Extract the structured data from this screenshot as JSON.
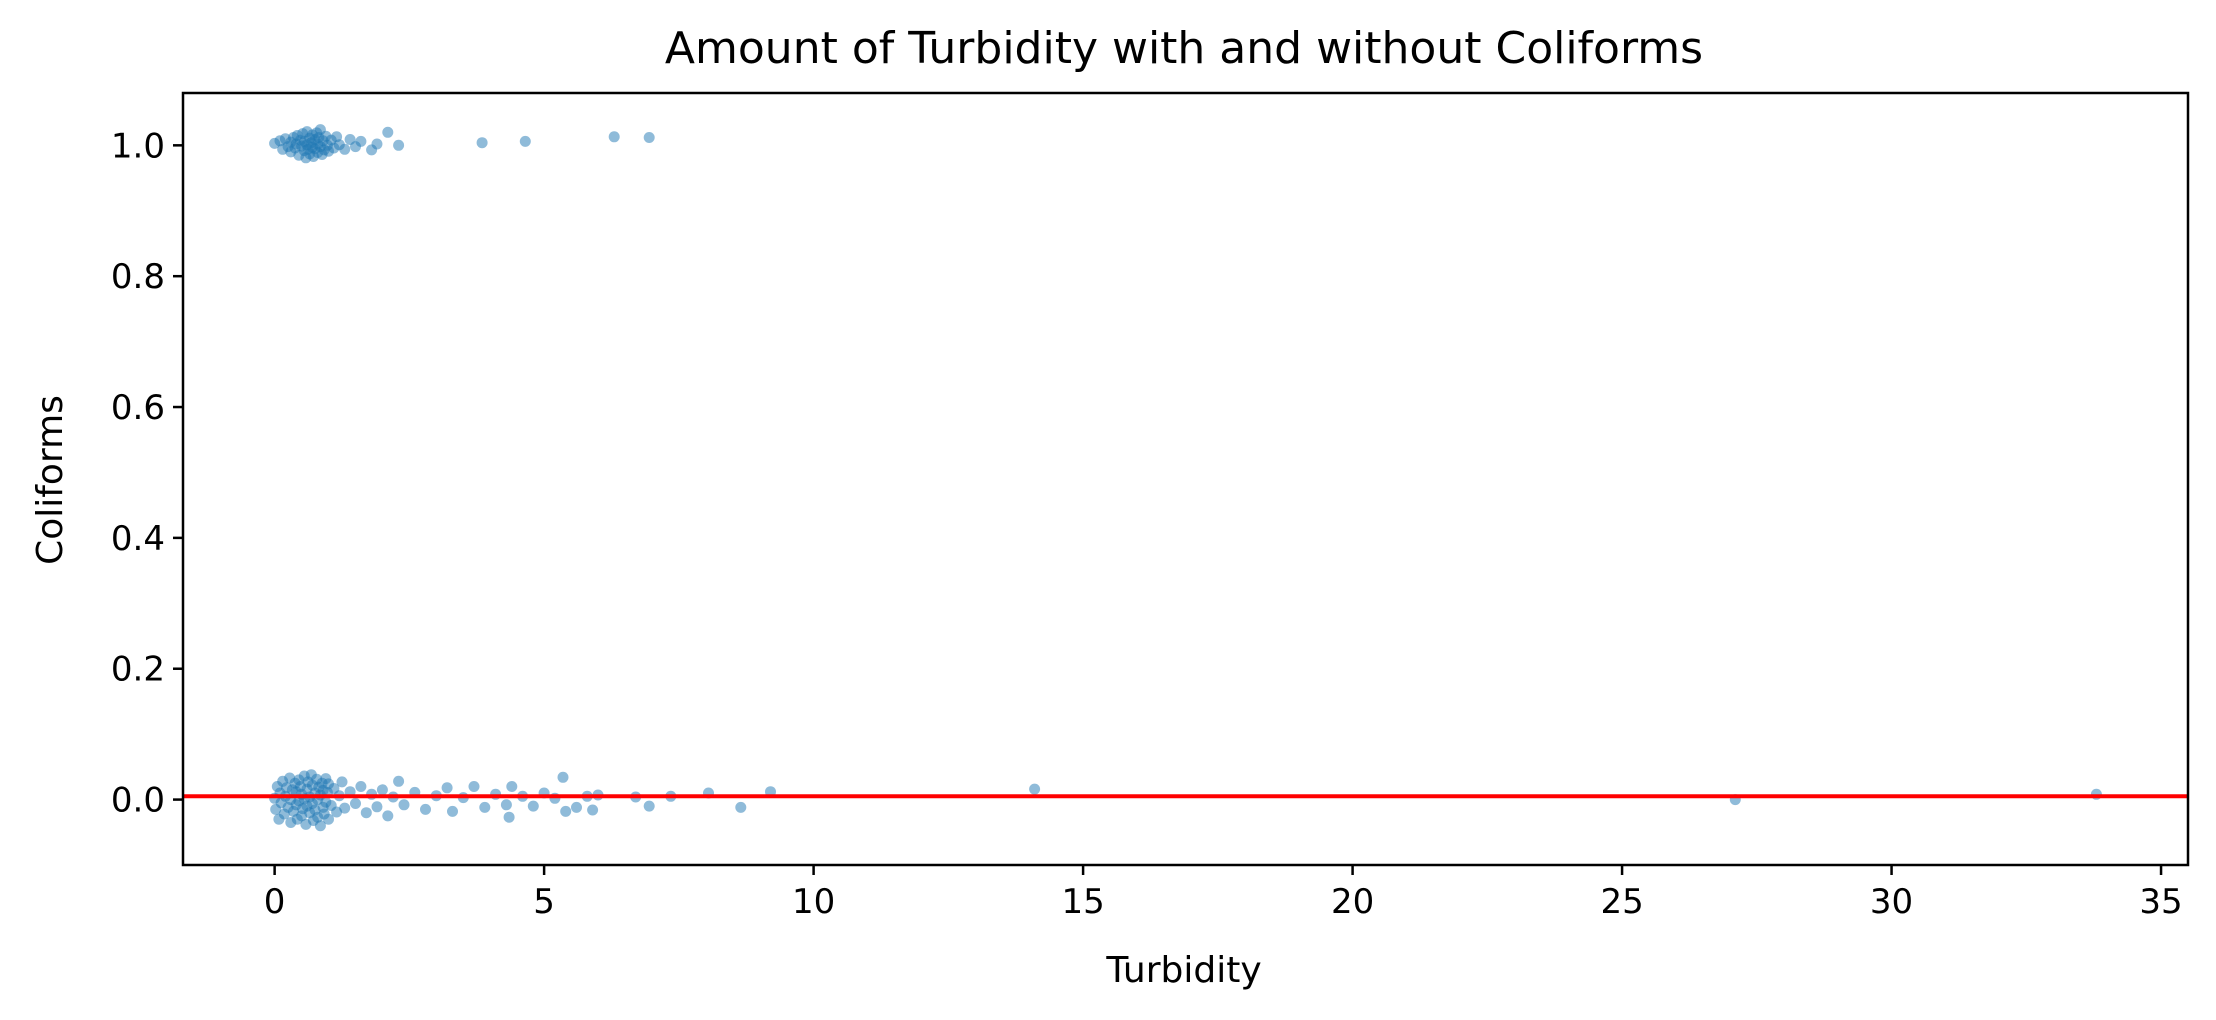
{
  "chart_data": {
    "type": "scatter",
    "title": "Amount of Turbidity with and without Coliforms",
    "xlabel": "Turbidity",
    "ylabel": "Coliforms",
    "xlim": [
      -1.7,
      35.5
    ],
    "ylim": [
      -0.1,
      1.08
    ],
    "xticks": [
      0,
      5,
      10,
      15,
      20,
      25,
      30,
      35
    ],
    "yticks": [
      0.0,
      0.2,
      0.4,
      0.6,
      0.8,
      1.0
    ],
    "xtick_labels": [
      "0",
      "5",
      "10",
      "15",
      "20",
      "25",
      "30",
      "35"
    ],
    "ytick_labels": [
      "0.0",
      "0.2",
      "0.4",
      "0.6",
      "0.8",
      "1.0"
    ],
    "grid": false,
    "point_color": "#1f77b4",
    "point_alpha": 0.5,
    "reference_line": {
      "y": 0.005,
      "color": "#ff0000"
    },
    "series": [
      {
        "points": [
          [
            0.0,
            1.003
          ],
          [
            0.1,
            1.007
          ],
          [
            0.15,
            0.994
          ],
          [
            0.2,
            1.01
          ],
          [
            0.25,
            0.998
          ],
          [
            0.3,
            1.005
          ],
          [
            0.3,
            0.99
          ],
          [
            0.35,
            1.012
          ],
          [
            0.38,
            0.996
          ],
          [
            0.4,
            1.002
          ],
          [
            0.42,
            1.015
          ],
          [
            0.45,
            0.985
          ],
          [
            0.48,
            1.008
          ],
          [
            0.5,
            0.999
          ],
          [
            0.52,
            1.018
          ],
          [
            0.55,
            0.992
          ],
          [
            0.55,
            1.006
          ],
          [
            0.58,
            0.981
          ],
          [
            0.6,
            1.001
          ],
          [
            0.6,
            1.021
          ],
          [
            0.62,
            0.994
          ],
          [
            0.65,
            1.011
          ],
          [
            0.65,
            0.987
          ],
          [
            0.68,
            1.004
          ],
          [
            0.7,
            0.997
          ],
          [
            0.7,
            1.016
          ],
          [
            0.72,
            0.983
          ],
          [
            0.75,
            1.009
          ],
          [
            0.75,
            0.995
          ],
          [
            0.78,
            1.019
          ],
          [
            0.8,
            1.002
          ],
          [
            0.8,
            0.989
          ],
          [
            0.82,
            1.012
          ],
          [
            0.85,
            0.998
          ],
          [
            0.85,
            1.024
          ],
          [
            0.88,
            0.986
          ],
          [
            0.9,
            1.007
          ],
          [
            0.92,
            0.993
          ],
          [
            0.95,
            1.014
          ],
          [
            0.98,
            1.0
          ],
          [
            1.0,
            0.991
          ],
          [
            1.05,
            1.008
          ],
          [
            1.1,
            0.996
          ],
          [
            1.15,
            1.013
          ],
          [
            1.2,
            1.001
          ],
          [
            1.3,
            0.994
          ],
          [
            1.4,
            1.009
          ],
          [
            1.5,
            0.998
          ],
          [
            1.6,
            1.006
          ],
          [
            1.8,
            0.993
          ],
          [
            1.9,
            1.002
          ],
          [
            2.1,
            1.02
          ],
          [
            2.3,
            1.0
          ],
          [
            3.85,
            1.004
          ],
          [
            4.65,
            1.006
          ],
          [
            6.3,
            1.013
          ],
          [
            6.95,
            1.012
          ]
        ]
      },
      {
        "points": [
          [
            0.0,
            0.002
          ],
          [
            0.02,
            -0.015
          ],
          [
            0.05,
            0.02
          ],
          [
            0.08,
            -0.03
          ],
          [
            0.1,
            0.01
          ],
          [
            0.12,
            -0.005
          ],
          [
            0.15,
            0.028
          ],
          [
            0.18,
            -0.022
          ],
          [
            0.2,
            0.005
          ],
          [
            0.22,
            0.018
          ],
          [
            0.25,
            -0.012
          ],
          [
            0.28,
            0.033
          ],
          [
            0.3,
            -0.035
          ],
          [
            0.3,
            0.0
          ],
          [
            0.33,
            0.015
          ],
          [
            0.35,
            -0.018
          ],
          [
            0.38,
            0.025
          ],
          [
            0.4,
            -0.008
          ],
          [
            0.4,
            0.012
          ],
          [
            0.42,
            -0.03
          ],
          [
            0.45,
            0.03
          ],
          [
            0.45,
            -0.002
          ],
          [
            0.48,
            0.02
          ],
          [
            0.5,
            -0.025
          ],
          [
            0.5,
            0.008
          ],
          [
            0.52,
            -0.014
          ],
          [
            0.55,
            0.036
          ],
          [
            0.55,
            0.001
          ],
          [
            0.58,
            -0.038
          ],
          [
            0.6,
            0.016
          ],
          [
            0.6,
            -0.01
          ],
          [
            0.62,
            0.027
          ],
          [
            0.65,
            -0.02
          ],
          [
            0.65,
            0.004
          ],
          [
            0.68,
            0.038
          ],
          [
            0.7,
            -0.006
          ],
          [
            0.7,
            0.022
          ],
          [
            0.72,
            -0.032
          ],
          [
            0.75,
            0.01
          ],
          [
            0.75,
            -0.016
          ],
          [
            0.78,
            0.031
          ],
          [
            0.8,
            0.0
          ],
          [
            0.8,
            -0.027
          ],
          [
            0.82,
            0.019
          ],
          [
            0.85,
            -0.04
          ],
          [
            0.85,
            0.007
          ],
          [
            0.88,
            0.025
          ],
          [
            0.9,
            -0.012
          ],
          [
            0.9,
            0.014
          ],
          [
            0.92,
            -0.022
          ],
          [
            0.95,
            0.032
          ],
          [
            0.95,
            -0.004
          ],
          [
            0.98,
            0.011
          ],
          [
            1.0,
            -0.03
          ],
          [
            1.0,
            0.024
          ],
          [
            1.05,
            -0.009
          ],
          [
            1.1,
            0.017
          ],
          [
            1.15,
            -0.019
          ],
          [
            1.2,
            0.006
          ],
          [
            1.25,
            0.027
          ],
          [
            1.3,
            -0.013
          ],
          [
            1.4,
            0.012
          ],
          [
            1.5,
            -0.006
          ],
          [
            1.6,
            0.02
          ],
          [
            1.7,
            -0.02
          ],
          [
            1.8,
            0.008
          ],
          [
            1.9,
            -0.011
          ],
          [
            2.0,
            0.015
          ],
          [
            2.1,
            -0.025
          ],
          [
            2.2,
            0.004
          ],
          [
            2.3,
            0.028
          ],
          [
            2.4,
            -0.008
          ],
          [
            2.6,
            0.011
          ],
          [
            2.8,
            -0.015
          ],
          [
            3.0,
            0.006
          ],
          [
            3.2,
            0.018
          ],
          [
            3.3,
            -0.018
          ],
          [
            3.5,
            0.003
          ],
          [
            3.7,
            0.02
          ],
          [
            3.9,
            -0.012
          ],
          [
            4.1,
            0.008
          ],
          [
            4.3,
            -0.008
          ],
          [
            4.35,
            -0.027
          ],
          [
            4.4,
            0.02
          ],
          [
            4.6,
            0.005
          ],
          [
            4.8,
            -0.01
          ],
          [
            5.0,
            0.01
          ],
          [
            5.2,
            0.002
          ],
          [
            5.35,
            0.034
          ],
          [
            5.4,
            -0.018
          ],
          [
            5.6,
            -0.012
          ],
          [
            5.8,
            0.005
          ],
          [
            5.9,
            -0.016
          ],
          [
            6.0,
            0.007
          ],
          [
            6.7,
            0.004
          ],
          [
            6.95,
            -0.01
          ],
          [
            7.35,
            0.005
          ],
          [
            8.05,
            0.01
          ],
          [
            8.65,
            -0.012
          ],
          [
            9.2,
            0.012
          ],
          [
            14.1,
            0.016
          ],
          [
            27.1,
            0.0
          ],
          [
            33.8,
            0.008
          ]
        ]
      }
    ]
  }
}
